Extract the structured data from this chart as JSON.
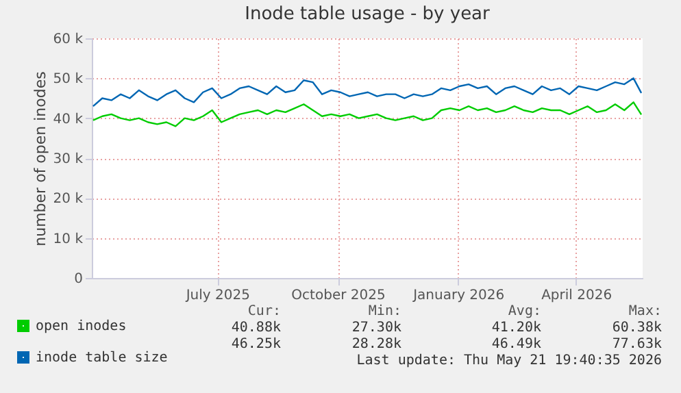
{
  "chart_data": {
    "type": "line",
    "title": "Inode table usage - by year",
    "ylabel": "number of open inodes",
    "x": [
      "2025-03-28",
      "2025-04-04",
      "2025-04-11",
      "2025-04-18",
      "2025-04-25",
      "2025-05-02",
      "2025-05-09",
      "2025-05-16",
      "2025-05-23",
      "2025-05-30",
      "2025-06-06",
      "2025-06-13",
      "2025-06-20",
      "2025-06-27",
      "2025-07-04",
      "2025-07-11",
      "2025-07-18",
      "2025-07-25",
      "2025-08-01",
      "2025-08-08",
      "2025-08-15",
      "2025-08-22",
      "2025-08-29",
      "2025-09-05",
      "2025-09-12",
      "2025-09-19",
      "2025-09-26",
      "2025-10-03",
      "2025-10-10",
      "2025-10-17",
      "2025-10-24",
      "2025-10-31",
      "2025-11-07",
      "2025-11-14",
      "2025-11-21",
      "2025-11-28",
      "2025-12-05",
      "2025-12-12",
      "2025-12-19",
      "2025-12-26",
      "2026-01-02",
      "2026-01-09",
      "2026-01-16",
      "2026-01-23",
      "2026-01-30",
      "2026-02-06",
      "2026-02-13",
      "2026-02-20",
      "2026-02-27",
      "2026-03-06",
      "2026-03-13",
      "2026-03-20",
      "2026-03-27",
      "2026-04-03",
      "2026-04-10",
      "2026-04-17",
      "2026-04-24",
      "2026-05-01",
      "2026-05-08",
      "2026-05-15",
      "2026-05-21"
    ],
    "series": [
      {
        "name": "open inodes",
        "color": "#00cc00",
        "values": [
          39500,
          40500,
          41000,
          40000,
          39500,
          40000,
          39000,
          38500,
          39000,
          38000,
          40000,
          39500,
          40500,
          42000,
          39000,
          40000,
          41000,
          41500,
          42000,
          41000,
          42000,
          41500,
          42500,
          43500,
          42000,
          40500,
          41000,
          40500,
          41000,
          40000,
          40500,
          41000,
          40000,
          39500,
          40000,
          40500,
          39500,
          40000,
          42000,
          42500,
          42000,
          43000,
          42000,
          42500,
          41500,
          42000,
          43000,
          42000,
          41500,
          42500,
          42000,
          42000,
          41000,
          42000,
          43000,
          41500,
          42000,
          43500,
          42000,
          44000,
          40900
        ]
      },
      {
        "name": "inode table size",
        "color": "#0066b3",
        "values": [
          43000,
          45000,
          44500,
          46000,
          45000,
          47000,
          45500,
          44500,
          46000,
          47000,
          45000,
          44000,
          46500,
          47500,
          45000,
          46000,
          47500,
          48000,
          47000,
          46000,
          48000,
          46500,
          47000,
          49500,
          49000,
          46000,
          47000,
          46500,
          45500,
          46000,
          46500,
          45500,
          46000,
          46000,
          45000,
          46000,
          45500,
          46000,
          47500,
          47000,
          48000,
          48500,
          47500,
          48000,
          46000,
          47500,
          48000,
          47000,
          46000,
          48000,
          47000,
          47500,
          46000,
          48000,
          47500,
          47000,
          48000,
          49000,
          48500,
          50000,
          46300
        ]
      }
    ],
    "xlim": [
      "2025-03-27",
      "2026-05-22"
    ],
    "xticks": [
      {
        "value": "2025-07-01",
        "label": "July 2025"
      },
      {
        "value": "2025-10-01",
        "label": "October 2025"
      },
      {
        "value": "2026-01-01",
        "label": "January 2026"
      },
      {
        "value": "2026-04-01",
        "label": "April 2026"
      }
    ],
    "ylim": [
      0,
      60000
    ],
    "yticks": [
      {
        "value": 0,
        "label": "0"
      },
      {
        "value": 10000,
        "label": "10 k"
      },
      {
        "value": 20000,
        "label": "20 k"
      },
      {
        "value": 30000,
        "label": "30 k"
      },
      {
        "value": 40000,
        "label": "40 k"
      },
      {
        "value": 50000,
        "label": "50 k"
      },
      {
        "value": 60000,
        "label": "60 k"
      }
    ],
    "grid": true,
    "legend": "bottom",
    "annotations": [
      "Cur:",
      "Min:",
      "Avg:",
      "Max:",
      "40.88k",
      "27.30k",
      "41.20k",
      "60.38k",
      "46.25k",
      "28.28k",
      "46.49k",
      "77.63k",
      "Last update: Thu May 21 19:40:35 2026"
    ]
  }
}
